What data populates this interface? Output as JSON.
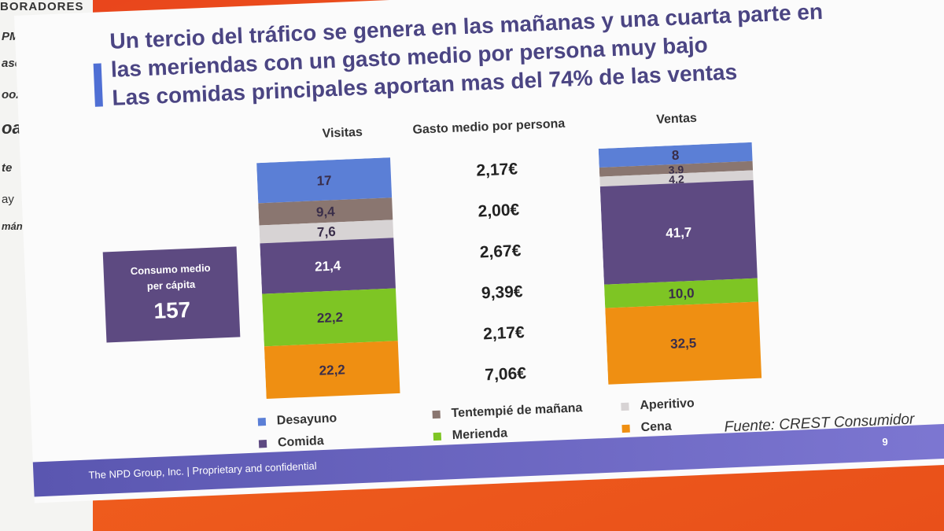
{
  "left_panel": {
    "header": "BORADORES",
    "sponsors": [
      "PMG",
      "ascual",
      "oozo",
      "oa",
      "te",
      "ay",
      "mán"
    ]
  },
  "slide": {
    "title_lines": [
      "Un tercio del tráfico se genera en las mañanas y una cuarta parte en",
      "las meriendas con un gasto medio por persona muy bajo",
      "Las comidas principales aportan mas del 74% de las ventas"
    ],
    "consumo": {
      "label_line1": "Consumo medio",
      "label_line2": "per cápita",
      "value": "157"
    },
    "gasto_header": "Gasto medio por persona",
    "gasto_values": [
      "2,17€",
      "2,00€",
      "2,67€",
      "9,39€",
      "2,17€",
      "7,06€"
    ],
    "source": "Fuente: CREST Consumidor",
    "footer": {
      "text": "The NPD Group, Inc.  |  Proprietary and confidential",
      "page": "9"
    }
  },
  "colors": {
    "Desayuno": "#5b7fd6",
    "Tentempié de mañana": "#8a7670",
    "Aperitivo": "#d7d3d4",
    "Comida": "#5e4a82",
    "Merienda": "#7ec524",
    "Cena": "#ef8f12"
  },
  "legend": [
    {
      "label": "Desayuno",
      "color": "#5b7fd6"
    },
    {
      "label": "Tentempié de mañana",
      "color": "#8a7670"
    },
    {
      "label": "Aperitivo",
      "color": "#d7d3d4"
    },
    {
      "label": "Comida",
      "color": "#5e4a82"
    },
    {
      "label": "Merienda",
      "color": "#7ec524"
    },
    {
      "label": "Cena",
      "color": "#ef8f12"
    }
  ],
  "chart_data": [
    {
      "type": "bar",
      "title": "Visitas",
      "stacked": true,
      "categories": [
        "Visitas"
      ],
      "series": [
        {
          "name": "Desayuno",
          "values": [
            17
          ]
        },
        {
          "name": "Tentempié de mañana",
          "values": [
            9.4
          ]
        },
        {
          "name": "Aperitivo",
          "values": [
            7.6
          ]
        },
        {
          "name": "Comida",
          "values": [
            21.4
          ]
        },
        {
          "name": "Merienda",
          "values": [
            22.2
          ]
        },
        {
          "name": "Cena",
          "values": [
            22.2
          ]
        }
      ],
      "labels": [
        "17",
        "9,4",
        "7,6",
        "21,4",
        "22,2",
        "22,2"
      ]
    },
    {
      "type": "bar",
      "title": "Ventas",
      "stacked": true,
      "categories": [
        "Ventas"
      ],
      "series": [
        {
          "name": "Desayuno",
          "values": [
            8
          ]
        },
        {
          "name": "Tentempié de mañana",
          "values": [
            3.9
          ]
        },
        {
          "name": "Aperitivo",
          "values": [
            4.2
          ]
        },
        {
          "name": "Comida",
          "values": [
            41.7
          ]
        },
        {
          "name": "Merienda",
          "values": [
            10.0
          ]
        },
        {
          "name": "Cena",
          "values": [
            32.5
          ]
        }
      ],
      "labels": [
        "8",
        "3,9",
        "4,2",
        "41,7",
        "10,0",
        "32,5"
      ]
    }
  ]
}
